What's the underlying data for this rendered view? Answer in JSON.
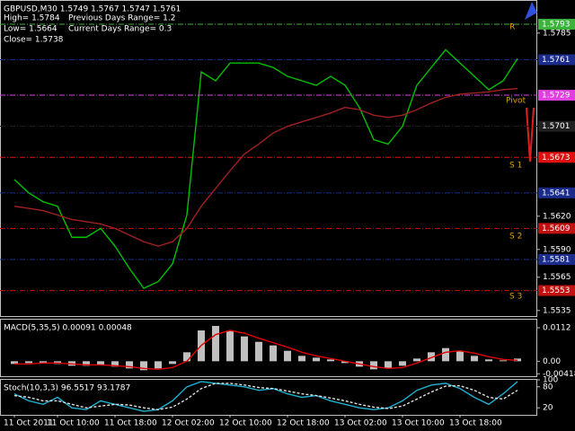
{
  "chart_data": [
    {
      "type": "line",
      "title": "GBPUSD,M30  1.5749 1.5767 1.5747 1.5761",
      "annotations": [
        "High= 1.5784",
        "Previous Days Range= 1.2",
        "Low= 1.5664",
        "Current Days Range= 0.3",
        "Close= 1.5738"
      ],
      "level_labels": [
        "R",
        "Pivot",
        "S 1",
        "S 2",
        "S 3"
      ],
      "categories": [
        "11 Oct 2011",
        null,
        null,
        "11 Oct 10:00",
        null,
        null,
        null,
        "11 Oct 18:00",
        null,
        null,
        null,
        "12 Oct 02:00",
        null,
        null,
        null,
        "12 Oct 10:00",
        null,
        null,
        null,
        "12 Oct 18:00",
        null,
        null,
        null,
        "13 Oct 02:00",
        null,
        null,
        null,
        "13 Oct 10:00",
        null,
        null,
        null,
        "13 Oct 18:00",
        null,
        null,
        null,
        null
      ],
      "series": [
        {
          "color": "#00c000",
          "values": [
            1.5653,
            1.5641,
            1.5633,
            1.5629,
            1.5601,
            1.5601,
            1.5609,
            1.5593,
            1.5573,
            1.5555,
            1.5561,
            1.5577,
            1.5621,
            1.575,
            1.5742,
            1.5758,
            1.5758,
            1.5758,
            1.5754,
            1.5746,
            1.5742,
            1.5738,
            1.5746,
            1.5738,
            1.5718,
            1.5689,
            1.5685,
            1.5701,
            1.5738,
            1.5754,
            1.577,
            1.5758,
            1.5746,
            1.5734,
            1.5742,
            1.5762
          ]
        },
        {
          "color": "#a02020",
          "values": [
            1.5629,
            1.5627,
            1.5625,
            1.5621,
            1.5617,
            1.5615,
            1.5613,
            1.5609,
            1.5603,
            1.5597,
            1.5593,
            1.5597,
            1.5609,
            1.5629,
            1.5645,
            1.5661,
            1.5676,
            1.5685,
            1.5695,
            1.5701,
            1.5705,
            1.5709,
            1.5713,
            1.5718,
            1.5716,
            1.5711,
            1.5709,
            1.5711,
            1.5716,
            1.5722,
            1.5727,
            1.573,
            1.5731,
            1.5732,
            1.5734,
            1.5735
          ]
        }
      ],
      "price_levels": [
        {
          "value": 1.5793,
          "color": "#3cb43c"
        },
        {
          "value": 1.5761,
          "color": "#1c2c8c"
        },
        {
          "value": 1.5729,
          "color": "#e040e0"
        },
        {
          "value": 1.5701,
          "color": "#202020"
        },
        {
          "value": 1.5673,
          "color": "#e01010"
        },
        {
          "value": 1.5641,
          "color": "#1c2c8c"
        },
        {
          "value": 1.5609,
          "color": "#c01010"
        },
        {
          "value": 1.5581,
          "color": "#1c2c8c"
        },
        {
          "value": 1.5553,
          "color": "#c01010"
        }
      ],
      "ylim": [
        1.553,
        1.5814
      ],
      "yticks": [
        1.5785,
        {
          "value": 1.562,
          "label": "1.5620"
        },
        {
          "value": 1.559,
          "label": "1.5590"
        },
        1.5565,
        1.5535
      ]
    },
    {
      "type": "macd",
      "title": "MACD(5,35,5) 0.00091 0.00048",
      "series": [
        {
          "style": "histogram",
          "color": "#c0c0c0",
          "values": [
            -0.0009,
            -0.0006,
            -0.0006,
            -0.0009,
            -0.0015,
            -0.0015,
            -0.0012,
            -0.0018,
            -0.0024,
            -0.003,
            -0.0024,
            -0.0009,
            0.003,
            0.0103,
            0.0118,
            0.0103,
            0.0083,
            0.0065,
            0.0053,
            0.0035,
            0.0018,
            0.0012,
            0.0006,
            -0.0006,
            -0.0018,
            -0.0027,
            -0.0024,
            -0.0015,
            0.0009,
            0.003,
            0.0044,
            0.0035,
            0.0018,
            0.0006,
            0.0003,
            0.0009
          ]
        },
        {
          "style": "line",
          "color": "#e00000",
          "values": [
            -0.0009,
            -0.0009,
            -0.0006,
            -0.0006,
            -0.0009,
            -0.0012,
            -0.0012,
            -0.0015,
            -0.0018,
            -0.0024,
            -0.0027,
            -0.0021,
            0,
            0.0053,
            0.0089,
            0.0103,
            0.0094,
            0.0077,
            0.0062,
            0.0047,
            0.003,
            0.0018,
            0.0009,
            0,
            -0.0009,
            -0.0018,
            -0.0024,
            -0.0021,
            -0.0006,
            0.0012,
            0.003,
            0.0035,
            0.0027,
            0.0015,
            0.0006,
            0.0003
          ]
        }
      ],
      "ylim": [
        -0.005,
        0.0139
      ],
      "yticks": [
        0.0112,
        {
          "value": 0,
          "label": "0.00"
        },
        -0.00418
      ]
    },
    {
      "type": "line",
      "title": "Stoch(10,3,3) 96.5517 93.1787",
      "series": [
        {
          "color": "#20b0d0",
          "values": [
            60,
            40,
            30,
            50,
            20,
            15,
            40,
            30,
            20,
            10,
            15,
            40,
            80,
            95,
            90,
            85,
            80,
            70,
            75,
            60,
            50,
            55,
            40,
            30,
            20,
            15,
            20,
            40,
            70,
            85,
            90,
            75,
            50,
            30,
            60,
            95
          ]
        },
        {
          "color": "#e0e0e0",
          "dashed": true,
          "values": [
            55,
            50,
            40,
            40,
            30,
            20,
            25,
            30,
            28,
            20,
            15,
            22,
            45,
            75,
            90,
            90,
            85,
            78,
            75,
            68,
            60,
            55,
            48,
            40,
            30,
            22,
            18,
            25,
            45,
            65,
            82,
            83,
            70,
            50,
            45,
            70
          ]
        }
      ],
      "ylim": [
        0,
        100
      ],
      "yticks": [
        100,
        80,
        20
      ]
    }
  ]
}
